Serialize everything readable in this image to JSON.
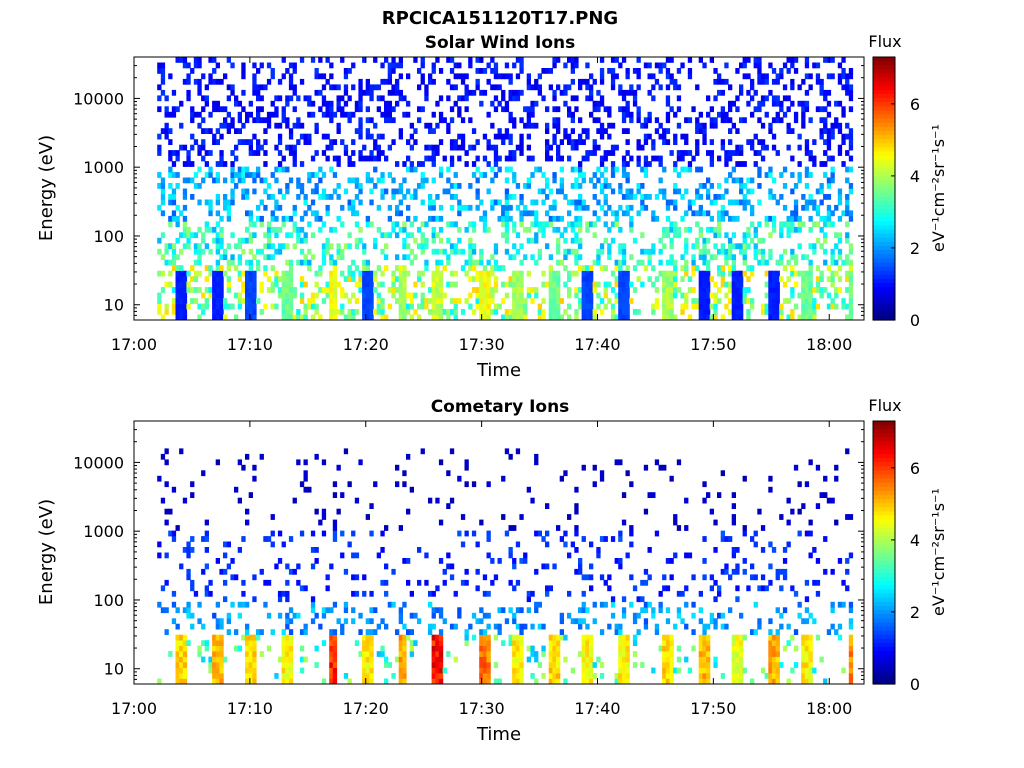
{
  "figure": {
    "title": "RPCICA151120T17.PNG"
  },
  "colors": {
    "colormap": "jet",
    "background": "#ffffff",
    "axes": "#000000"
  },
  "chart_data": [
    {
      "type": "heatmap",
      "title": "Solar Wind Ions",
      "xlabel": "Time",
      "ylabel": "Energy (eV)",
      "y_scale": "log",
      "xlim": [
        "17:00",
        "18:03"
      ],
      "ylim": [
        6,
        40000
      ],
      "x_ticks": [
        "17:00",
        "17:10",
        "17:20",
        "17:30",
        "17:40",
        "17:50",
        "18:00"
      ],
      "y_ticks": [
        "10",
        "100",
        "1000",
        "10000"
      ],
      "colorbar": {
        "title": "Flux",
        "label": "eV⁻¹cm⁻²sr⁻¹s⁻¹",
        "range": [
          0,
          7.3
        ],
        "ticks": [
          "0",
          "2",
          "4",
          "6"
        ]
      },
      "data_time_range": [
        "17:02",
        "18:02"
      ],
      "description_bands": [
        {
          "energy_range_eV": [
            1000,
            40000
          ],
          "flux": 1.0
        },
        {
          "energy_range_eV": [
            150,
            1000
          ],
          "flux": 2.2
        },
        {
          "energy_range_eV": [
            40,
            150
          ],
          "flux": 3.0
        },
        {
          "energy_range_eV": [
            6,
            40
          ],
          "flux": 3.8
        }
      ],
      "bursts": [
        {
          "time": "17:04",
          "peak_flux": 1.2
        },
        {
          "time": "17:07",
          "peak_flux": 1.2
        },
        {
          "time": "17:10",
          "peak_flux": 1.5
        },
        {
          "time": "17:13",
          "peak_flux": 3.8
        },
        {
          "time": "17:17",
          "peak_flux": 4.8
        },
        {
          "time": "17:20",
          "peak_flux": 1.5
        },
        {
          "time": "17:23",
          "peak_flux": 4.2
        },
        {
          "time": "17:26",
          "peak_flux": 4.5
        },
        {
          "time": "17:30",
          "peak_flux": 4.8
        },
        {
          "time": "17:33",
          "peak_flux": 4.2
        },
        {
          "time": "17:36",
          "peak_flux": 3.8
        },
        {
          "time": "17:39",
          "peak_flux": 1.5
        },
        {
          "time": "17:42",
          "peak_flux": 1.5
        },
        {
          "time": "17:46",
          "peak_flux": 4.2
        },
        {
          "time": "17:49",
          "peak_flux": 1.2
        },
        {
          "time": "17:52",
          "peak_flux": 1.2
        },
        {
          "time": "17:55",
          "peak_flux": 1.2
        },
        {
          "time": "17:58",
          "peak_flux": 3.8
        },
        {
          "time": "18:02",
          "peak_flux": 3.8
        }
      ]
    },
    {
      "type": "heatmap",
      "title": "Cometary Ions",
      "xlabel": "Time",
      "ylabel": "Energy (eV)",
      "y_scale": "log",
      "xlim": [
        "17:00",
        "18:03"
      ],
      "ylim": [
        6,
        40000
      ],
      "x_ticks": [
        "17:00",
        "17:10",
        "17:20",
        "17:30",
        "17:40",
        "17:50",
        "18:00"
      ],
      "y_ticks": [
        "10",
        "100",
        "1000",
        "10000"
      ],
      "colorbar": {
        "title": "Flux",
        "label": "eV⁻¹cm⁻²sr⁻¹s⁻¹",
        "range": [
          0,
          7.3
        ],
        "ticks": [
          "0",
          "2",
          "4",
          "6"
        ]
      },
      "data_time_range": [
        "17:02",
        "18:02"
      ],
      "description_bands": [
        {
          "energy_range_eV": [
            1000,
            15000
          ],
          "flux": 0.5
        },
        {
          "energy_range_eV": [
            100,
            1000
          ],
          "flux": 1.2
        },
        {
          "energy_range_eV": [
            30,
            100
          ],
          "flux": 2.0
        },
        {
          "energy_range_eV": [
            6,
            30
          ],
          "flux": 3.2
        }
      ],
      "bursts": [
        {
          "time": "17:04",
          "peak_flux": 5.2
        },
        {
          "time": "17:07",
          "peak_flux": 5.5
        },
        {
          "time": "17:10",
          "peak_flux": 5.2
        },
        {
          "time": "17:13",
          "peak_flux": 5.0
        },
        {
          "time": "17:17",
          "peak_flux": 6.6
        },
        {
          "time": "17:20",
          "peak_flux": 5.0
        },
        {
          "time": "17:23",
          "peak_flux": 5.6
        },
        {
          "time": "17:26",
          "peak_flux": 6.8
        },
        {
          "time": "17:30",
          "peak_flux": 6.0
        },
        {
          "time": "17:33",
          "peak_flux": 5.0
        },
        {
          "time": "17:36",
          "peak_flux": 5.2
        },
        {
          "time": "17:39",
          "peak_flux": 5.0
        },
        {
          "time": "17:42",
          "peak_flux": 5.0
        },
        {
          "time": "17:46",
          "peak_flux": 5.2
        },
        {
          "time": "17:49",
          "peak_flux": 5.5
        },
        {
          "time": "17:52",
          "peak_flux": 4.8
        },
        {
          "time": "17:55",
          "peak_flux": 5.5
        },
        {
          "time": "17:58",
          "peak_flux": 5.0
        },
        {
          "time": "18:02",
          "peak_flux": 5.8
        }
      ]
    }
  ]
}
